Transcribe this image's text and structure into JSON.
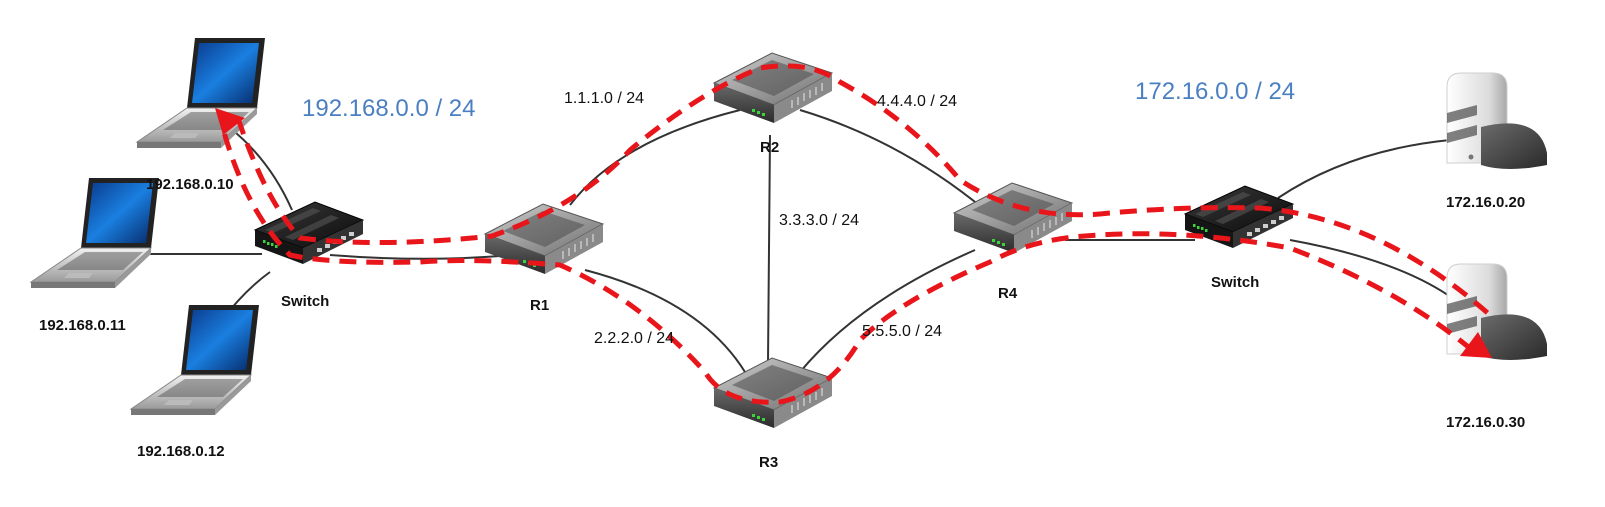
{
  "subnets": {
    "left": "192.168.0.0 / 24",
    "right": "172.16.0.0 / 24"
  },
  "links": {
    "r1_r2": "1.1.1.0 / 24",
    "r1_r3": "2.2.2.0 / 24",
    "r2_r3": "3.3.3.0 / 24",
    "r2_r4": "4.4.4.0 / 24",
    "r3_r4": "5.5.5.0 / 24"
  },
  "devices": {
    "laptop1": "192.168.0.10",
    "laptop2": "192.168.0.11",
    "laptop3": "192.168.0.12",
    "switch_left": "Switch",
    "switch_right": "Switch",
    "r1": "R1",
    "r2": "R2",
    "r3": "R3",
    "r4": "R4",
    "server1": "172.16.0.20",
    "server2": "172.16.0.30"
  },
  "colors": {
    "path": "#e8161b",
    "link": "#333333",
    "subnet_text": "#4a7fc1"
  }
}
